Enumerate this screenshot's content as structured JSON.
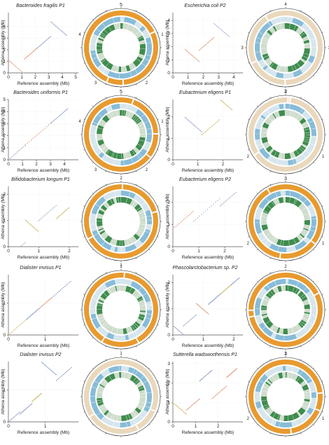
{
  "xlabel": "Reference assembly (Mb)",
  "ylabel": "Athena assembly (Mb)",
  "colors": {
    "orange": "#E89A2E",
    "beige": "#EAD8BC",
    "blue": "#87BCD8",
    "paleblue": "#D6E6EE",
    "green": "#3F8C4E",
    "palegreen": "#CFDDCD",
    "dot": "#7A8FB8",
    "axis": "#333333"
  },
  "panels": [
    {
      "title": "Bacteroides fragilis P1",
      "xticks": [
        "0",
        "1",
        "2",
        "3",
        "4",
        "5"
      ],
      "yticks": [
        "0",
        "1",
        "2",
        "3",
        "4"
      ],
      "axmax": 5.2,
      "ring_label": "5",
      "ring_ticks": [
        "1",
        "2",
        "3",
        "4"
      ],
      "ring_outer": "orange"
    },
    {
      "title": "Escherichia coli P2",
      "xticks": [
        "0",
        "1",
        "2",
        "3",
        "4"
      ],
      "yticks": [
        "0",
        "1",
        "2",
        "3",
        "4"
      ],
      "axmax": 4.6,
      "ring_label": "",
      "ring_ticks": [
        "1",
        "2",
        "3",
        "4"
      ],
      "ring_outer": "beige"
    },
    {
      "title": "Bacteroides uniformis P1",
      "xticks": [
        "0",
        "1",
        "2",
        "3",
        "4"
      ],
      "yticks": [
        "0",
        "1",
        "2",
        "3",
        "4",
        "5"
      ],
      "axmax": 5.0,
      "ring_label": "5",
      "ring_ticks": [
        "1",
        "2",
        "3",
        "4"
      ],
      "ring_outer": "orange"
    },
    {
      "title": "Eubacterium eligens P1",
      "xticks": [
        "0",
        "1",
        "2"
      ],
      "yticks": [
        "0",
        "1",
        "2"
      ],
      "axmax": 2.8,
      "ring_label": "3",
      "ring_ticks": [
        "1",
        "2"
      ],
      "ring_outer": "beige"
    },
    {
      "title": "Bifidobacterium longum P1",
      "xticks": [
        "0",
        "1",
        "2"
      ],
      "yticks": [
        "0",
        "1",
        "2"
      ],
      "axmax": 2.3,
      "ring_label": "",
      "ring_ticks": [
        "1",
        "2"
      ],
      "ring_outer": "orange"
    },
    {
      "title": "Eubacterium eligens P2",
      "xticks": [
        "0",
        "1",
        "2"
      ],
      "yticks": [
        "0",
        "1",
        "2"
      ],
      "axmax": 2.7,
      "ring_label": "3",
      "ring_ticks": [
        "1",
        "2"
      ],
      "ring_outer": "orange"
    },
    {
      "title": "Dialister invisus P1",
      "xticks": [
        "0",
        "1"
      ],
      "yticks": [
        "0",
        "1"
      ],
      "axmax": 1.9,
      "ring_label": "",
      "ring_ticks": [
        "1"
      ],
      "ring_outer": "orange"
    },
    {
      "title": "Phascolarctobacterium sp. P2",
      "xticks": [
        "0",
        "1",
        "2"
      ],
      "yticks": [
        "0",
        "1",
        "2"
      ],
      "axmax": 2.3,
      "ring_label": "",
      "ring_ticks": [
        "1",
        "2"
      ],
      "ring_outer": "orange"
    },
    {
      "title": "Dialister invisus P2",
      "xticks": [
        "0",
        "1"
      ],
      "yticks": [
        "0",
        "1"
      ],
      "axmax": 1.9,
      "ring_label": "",
      "ring_ticks": [
        "1"
      ],
      "ring_outer": "beige"
    },
    {
      "title": "Sutterella wadsworthensis P1",
      "xticks": [
        "0",
        "1",
        "2"
      ],
      "yticks": [
        "0",
        "1",
        "2",
        "3"
      ],
      "axmax": 3.1,
      "ring_label": "3",
      "ring_ticks": [
        "1",
        "2"
      ],
      "ring_outer": "orange"
    }
  ]
}
